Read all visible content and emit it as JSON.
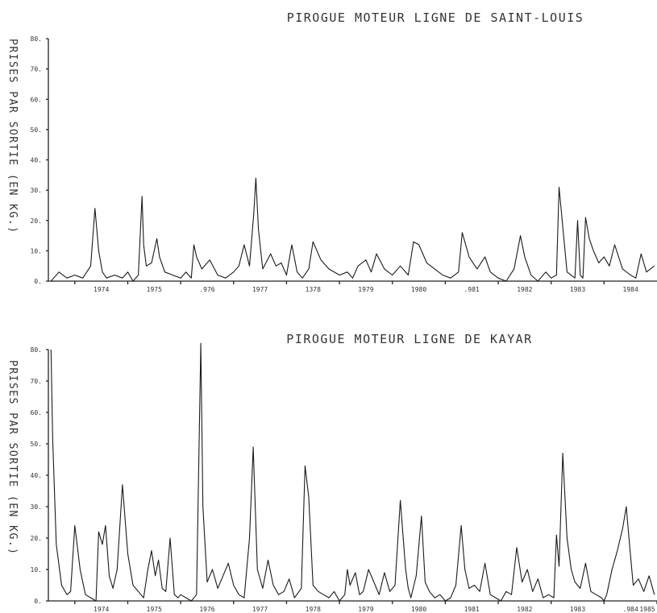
{
  "chart_data": [
    {
      "type": "line",
      "title": "PIROGUE MOTEUR LIGNE DE SAINT-LOUIS",
      "ylabel": "PRISES PAR SORTIE (EN KG.)",
      "xlabel": "",
      "ylim": [
        0,
        80
      ],
      "yticks": [
        "0.",
        "10.",
        "20.",
        "30.",
        "40.",
        "50.",
        "60.",
        "70.",
        "80."
      ],
      "xlim": [
        1973.5,
        1985.0
      ],
      "xticks": [
        "1974",
        "1975",
        "1976",
        "1977",
        "1978",
        "1979",
        "1980",
        "1981",
        "1982",
        "1983",
        "1984"
      ],
      "xtick_labels": [
        "1974",
        "1975",
        ".976",
        "1977",
        "1378",
        "1979",
        "1980",
        ".981",
        "1982",
        "1983",
        "1984"
      ],
      "series": [
        {
          "x": [
            1973.55,
            1973.7,
            1973.85,
            1974.0,
            1974.15,
            1974.3,
            1974.38,
            1974.45,
            1974.52,
            1974.6,
            1974.75,
            1974.9,
            1975.0,
            1975.1,
            1975.2,
            1975.27,
            1975.3,
            1975.35,
            1975.45,
            1975.55,
            1975.6,
            1975.7,
            1975.85,
            1976.0,
            1976.1,
            1976.2,
            1976.25,
            1976.3,
            1976.4,
            1976.55,
            1976.7,
            1976.85,
            1977.0,
            1977.1,
            1977.2,
            1977.3,
            1977.38,
            1977.42,
            1977.47,
            1977.55,
            1977.7,
            1977.8,
            1977.9,
            1978.0,
            1978.1,
            1978.2,
            1978.3,
            1978.42,
            1978.5,
            1978.65,
            1978.8,
            1979.0,
            1979.15,
            1979.25,
            1979.35,
            1979.5,
            1979.6,
            1979.7,
            1979.85,
            1980.0,
            1980.15,
            1980.3,
            1980.4,
            1980.5,
            1980.65,
            1980.8,
            1980.95,
            1981.1,
            1981.25,
            1981.32,
            1981.45,
            1981.6,
            1981.75,
            1981.85,
            1982.0,
            1982.15,
            1982.3,
            1982.42,
            1982.5,
            1982.62,
            1982.75,
            1982.9,
            1983.0,
            1983.1,
            1983.15,
            1983.3,
            1983.45,
            1983.5,
            1983.55,
            1983.6,
            1983.65,
            1983.72,
            1983.8,
            1983.9,
            1984.0,
            1984.1,
            1984.2,
            1984.35,
            1984.5,
            1984.6,
            1984.7,
            1984.8,
            1984.95
          ],
          "y": [
            0,
            3,
            1,
            2,
            1,
            5,
            24,
            10,
            3,
            1,
            2,
            1,
            3,
            0,
            2,
            28,
            12,
            5,
            6,
            14,
            8,
            3,
            2,
            1,
            3,
            1,
            12,
            8,
            4,
            7,
            2,
            1,
            3,
            5,
            12,
            5,
            22,
            34,
            17,
            4,
            9,
            5,
            6,
            2,
            12,
            3,
            1,
            4,
            13,
            7,
            4,
            2,
            3,
            1,
            5,
            7,
            3,
            9,
            4,
            2,
            5,
            2,
            13,
            12,
            6,
            4,
            2,
            1,
            3,
            16,
            8,
            4,
            8,
            3,
            1,
            0,
            4,
            15,
            8,
            2,
            0,
            3,
            1,
            2,
            31,
            3,
            1,
            20,
            2,
            1,
            21,
            14,
            10,
            6,
            8,
            5,
            12,
            4,
            2,
            1,
            9,
            3,
            5
          ]
        }
      ]
    },
    {
      "type": "line",
      "title": "PIROGUE MOTEUR LIGNE DE KAYAR",
      "ylabel": "PRISES PAR SORTIE (EN KG.)",
      "xlabel": "",
      "ylim": [
        0,
        80
      ],
      "yticks": [
        "0.",
        "10.",
        "20.",
        "30.",
        "40.",
        "50.",
        "60.",
        "70.",
        "80."
      ],
      "xlim": [
        1973.5,
        1985.0
      ],
      "xticks": [
        "1974",
        "1975",
        "1976",
        "1977",
        "1978",
        "1979",
        "1980",
        "1981",
        "1982",
        "1983",
        "1984",
        "1985"
      ],
      "xtick_labels": [
        "1974",
        "1975",
        "1976",
        "1977",
        "1978",
        "1979",
        "1980",
        "1981",
        "1982",
        "1983",
        ".984",
        "1985"
      ],
      "series": [
        {
          "x": [
            1973.55,
            1973.58,
            1973.65,
            1973.75,
            1973.85,
            1973.92,
            1974.0,
            1974.1,
            1974.2,
            1974.3,
            1974.4,
            1974.45,
            1974.52,
            1974.58,
            1974.65,
            1974.72,
            1974.8,
            1974.9,
            1975.0,
            1975.1,
            1975.2,
            1975.3,
            1975.38,
            1975.45,
            1975.52,
            1975.58,
            1975.65,
            1975.72,
            1975.8,
            1975.88,
            1975.95,
            1976.0,
            1976.1,
            1976.2,
            1976.3,
            1976.38,
            1976.42,
            1976.5,
            1976.6,
            1976.7,
            1976.8,
            1976.9,
            1977.0,
            1977.1,
            1977.2,
            1977.3,
            1977.37,
            1977.45,
            1977.55,
            1977.65,
            1977.75,
            1977.85,
            1977.95,
            1978.05,
            1978.15,
            1978.28,
            1978.35,
            1978.42,
            1978.5,
            1978.6,
            1978.7,
            1978.8,
            1978.9,
            1979.0,
            1979.1,
            1979.15,
            1979.2,
            1979.3,
            1979.38,
            1979.45,
            1979.55,
            1979.65,
            1979.75,
            1979.85,
            1979.95,
            1980.05,
            1980.15,
            1980.25,
            1980.3,
            1980.35,
            1980.45,
            1980.55,
            1980.62,
            1980.7,
            1980.8,
            1980.9,
            1981.0,
            1981.1,
            1981.2,
            1981.3,
            1981.37,
            1981.45,
            1981.55,
            1981.65,
            1981.75,
            1981.85,
            1981.95,
            1982.05,
            1982.15,
            1982.25,
            1982.35,
            1982.45,
            1982.55,
            1982.65,
            1982.75,
            1982.85,
            1982.95,
            1983.05,
            1983.1,
            1983.15,
            1983.22,
            1983.3,
            1983.38,
            1983.45,
            1983.55,
            1983.65,
            1983.75,
            1983.85,
            1983.95,
            1984.0,
            1984.05,
            1984.15,
            1984.25,
            1984.35,
            1984.42,
            1984.48,
            1984.55,
            1984.65,
            1984.75,
            1984.85,
            1984.95
          ],
          "y": [
            80,
            52,
            18,
            5,
            2,
            3,
            24,
            10,
            2,
            1,
            0,
            22,
            18,
            24,
            8,
            4,
            10,
            37,
            15,
            5,
            3,
            1,
            10,
            16,
            8,
            13,
            4,
            3,
            20,
            2,
            1,
            2,
            1,
            0,
            2,
            82,
            30,
            6,
            10,
            4,
            8,
            12,
            5,
            2,
            1,
            20,
            49,
            10,
            4,
            13,
            5,
            2,
            3,
            7,
            1,
            4,
            43,
            33,
            5,
            3,
            2,
            1,
            3,
            0,
            2,
            10,
            5,
            9,
            2,
            3,
            10,
            6,
            2,
            9,
            3,
            5,
            32,
            10,
            4,
            1,
            8,
            27,
            6,
            3,
            1,
            2,
            0,
            1,
            5,
            24,
            10,
            4,
            5,
            3,
            12,
            2,
            1,
            0,
            3,
            2,
            17,
            6,
            10,
            3,
            7,
            1,
            2,
            1,
            21,
            11,
            47,
            20,
            10,
            6,
            4,
            12,
            3,
            2,
            1,
            0,
            2,
            10,
            16,
            23,
            30,
            18,
            5,
            7,
            3,
            8,
            2
          ]
        }
      ]
    }
  ]
}
